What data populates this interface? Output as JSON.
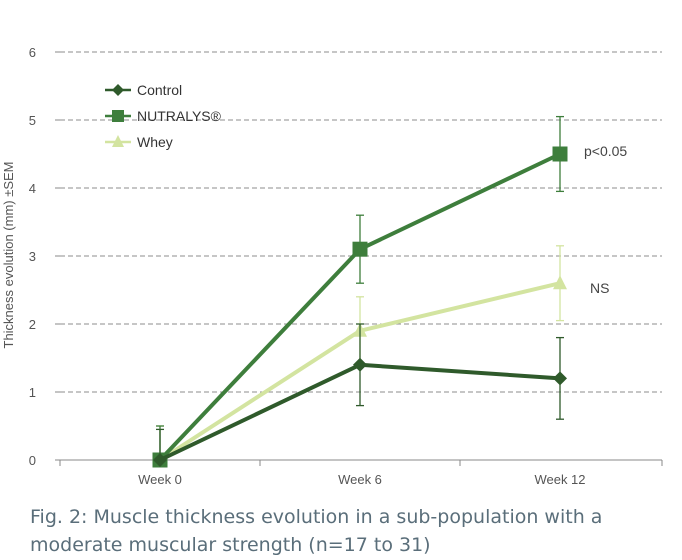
{
  "chart_data": {
    "type": "line",
    "ylabel": "Thickness evolution (mm) ±SEM",
    "xlabel": "",
    "categories": [
      "Week 0",
      "Week 6",
      "Week 12"
    ],
    "ylim": [
      0,
      6
    ],
    "yticks": [
      "0",
      "1",
      "2",
      "3",
      "4",
      "5",
      "6"
    ],
    "grid": true,
    "legend_position": "top-left",
    "series": [
      {
        "name": "Control",
        "marker": "diamond",
        "color": "#2f5a2b",
        "values": [
          0,
          1.4,
          1.2
        ],
        "error": [
          0.45,
          0.6,
          0.6
        ]
      },
      {
        "name": "NUTRALYS®",
        "marker": "square",
        "color": "#3e7e3c",
        "values": [
          0,
          3.1,
          4.5
        ],
        "error": [
          0.5,
          0.5,
          0.55
        ]
      },
      {
        "name": "Whey",
        "marker": "triangle",
        "color": "#d3e4a0",
        "values": [
          0,
          1.9,
          2.6
        ],
        "error": [
          0.5,
          0.5,
          0.55
        ]
      }
    ],
    "annotations": [
      {
        "text": "p<0.05",
        "category": "Week 12",
        "series": "NUTRALYS®"
      },
      {
        "text": "NS",
        "category": "Week 12",
        "series": "Whey"
      }
    ]
  },
  "caption": {
    "line1": "Fig. 2: Muscle thickness evolution in a sub-population with a",
    "line2": "moderate muscular strength (n=17 to 31)"
  },
  "colors": {
    "axis": "#888888",
    "grid": "#8c8c8c",
    "text": "#555555",
    "caption": "#5a6e7a"
  }
}
